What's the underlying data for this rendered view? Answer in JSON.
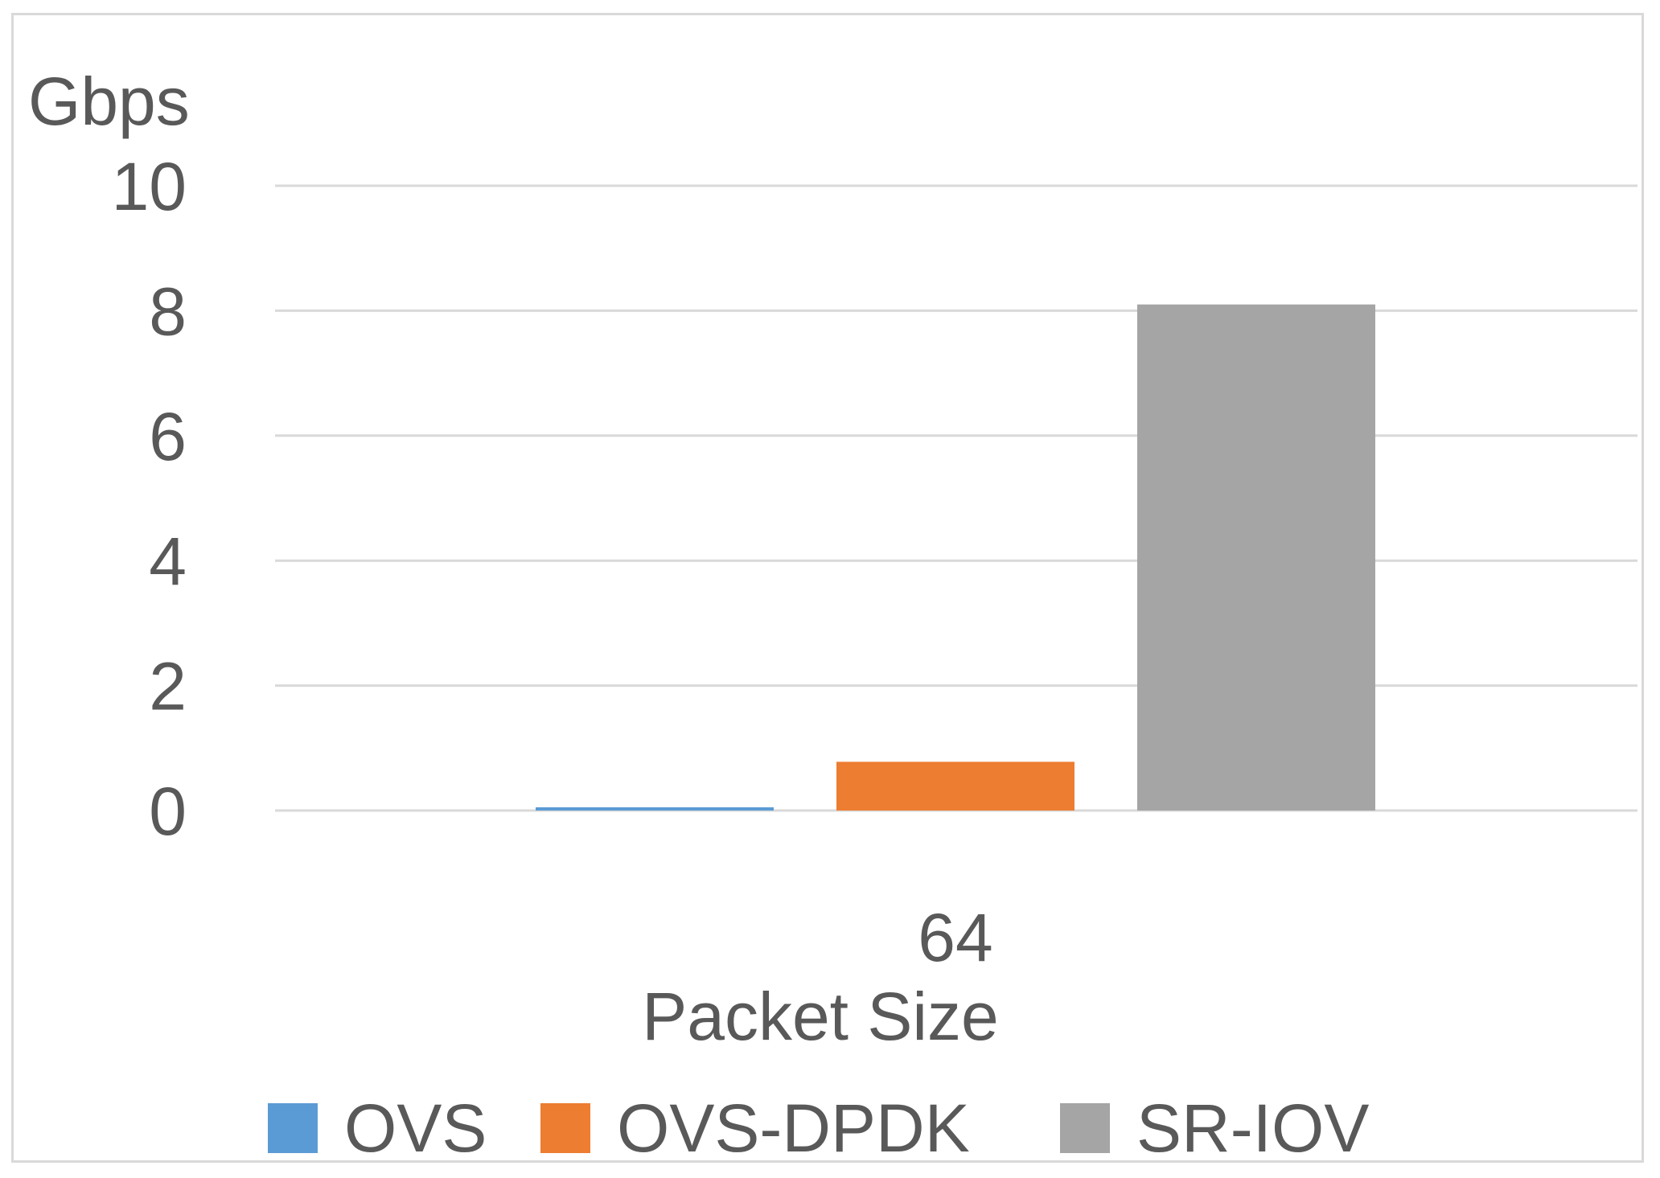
{
  "chart_data": {
    "type": "bar",
    "ylabel": "Gbps",
    "xlabel": "Packet Size",
    "categories": [
      "64"
    ],
    "ylim": [
      0,
      10
    ],
    "yticks": [
      "0",
      "2",
      "4",
      "6",
      "8",
      "10"
    ],
    "grid": true,
    "legend_position": "bottom",
    "series": [
      {
        "name": "OVS",
        "values": [
          0.05
        ],
        "color": "#5b9bd5"
      },
      {
        "name": "OVS-DPDK",
        "values": [
          0.78
        ],
        "color": "#ed7d31"
      },
      {
        "name": "SR-IOV",
        "values": [
          8.1
        ],
        "color": "#a5a5a5"
      }
    ]
  }
}
